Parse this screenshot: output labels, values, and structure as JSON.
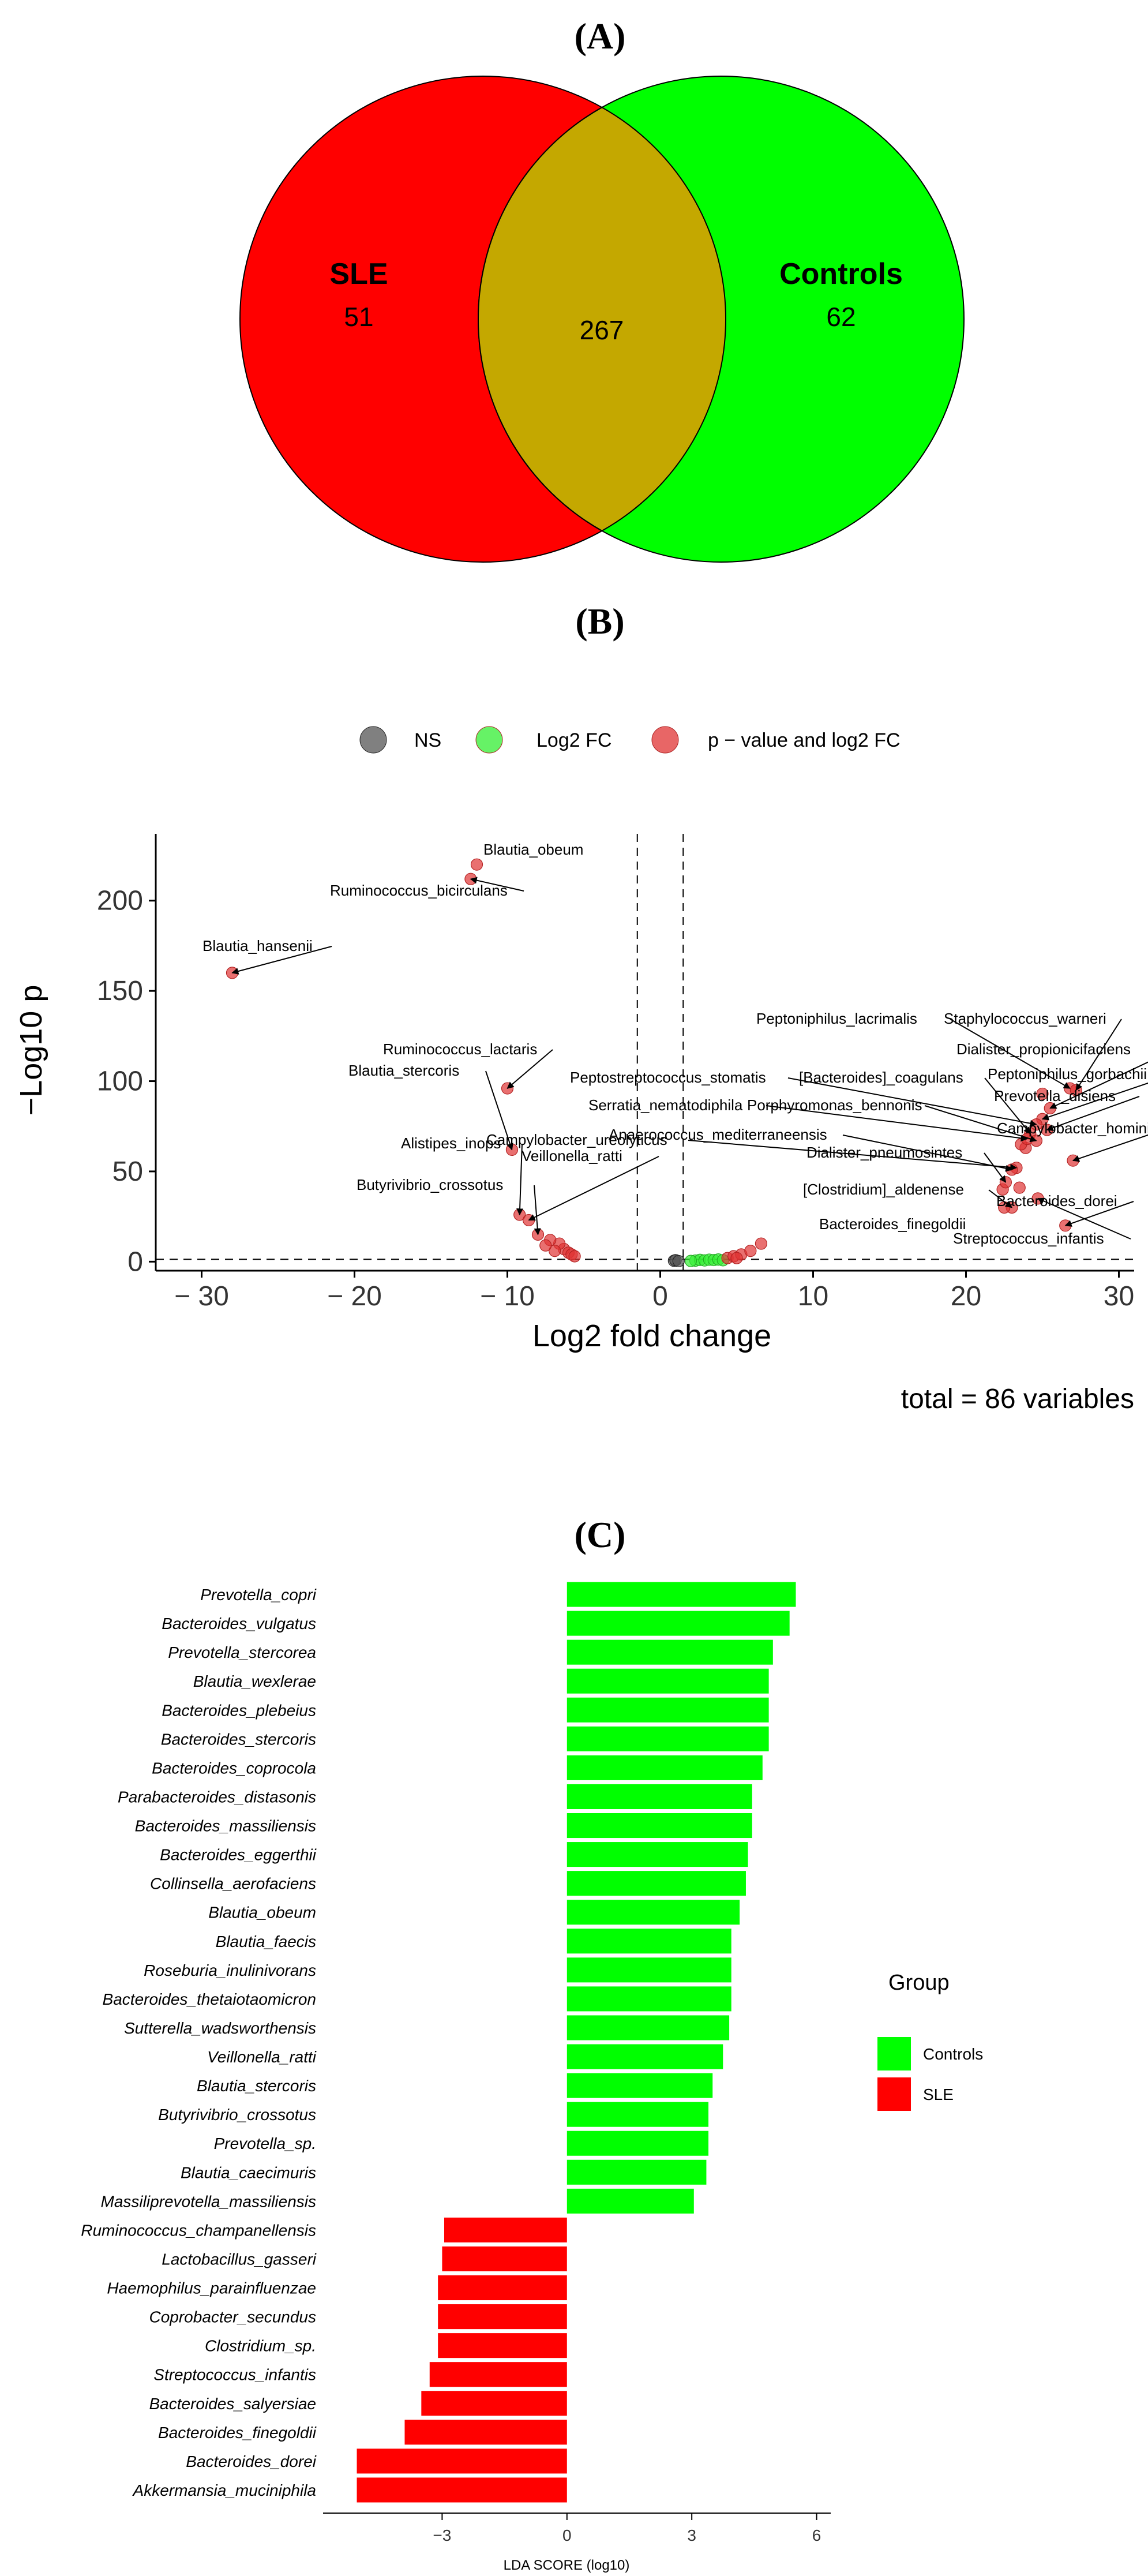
{
  "panels": {
    "a": "(A)",
    "b": "(B)",
    "c": "(C)"
  },
  "chart_data": [
    {
      "type": "venn",
      "sets": [
        {
          "name": "SLE",
          "unique": "51",
          "color": "#ff0000"
        },
        {
          "name": "Controls",
          "unique": "62",
          "color": "#00ff00"
        }
      ],
      "overlap": "267",
      "overlap_color": "#c4a800"
    },
    {
      "type": "scatter",
      "xlabel": "Log2 fold change",
      "ylabel": "−Log10 p",
      "xlim": [
        -33,
        31
      ],
      "ylim": [
        -5,
        237
      ],
      "x_ticks": [
        -30,
        -20,
        -10,
        0,
        10,
        20,
        30
      ],
      "y_ticks": [
        0,
        50,
        100,
        150,
        200
      ],
      "x_tick_labels": [
        "− 30",
        "− 20",
        "− 10",
        "0",
        "10",
        "20",
        "30"
      ],
      "y_tick_labels": [
        "0",
        "50",
        "100",
        "150",
        "200"
      ],
      "thresholds": {
        "fc": [
          -1.5,
          1.5
        ],
        "p": 1.3
      },
      "legend": [
        {
          "key": "NS",
          "label": "NS",
          "color": "#555555"
        },
        {
          "key": "fc",
          "label": "Log2 FC",
          "color": "#33ee33"
        },
        {
          "key": "pfc",
          "label": "p − value and log2 FC",
          "color": "#e03333"
        }
      ],
      "caption": "total = 86 variables",
      "labeled_points": [
        {
          "label": "Blautia_obeum",
          "x": -12.0,
          "y": 220
        },
        {
          "label": "Ruminococcus_bicirculans",
          "x": -12.4,
          "y": 212
        },
        {
          "label": "Blautia_hansenii",
          "x": -28.0,
          "y": 160
        },
        {
          "label": "Ruminococcus_lactaris",
          "x": -10.0,
          "y": 96
        },
        {
          "label": "Blautia_stercoris",
          "x": -9.7,
          "y": 62
        },
        {
          "label": "Alistipes_inops",
          "x": -9.2,
          "y": 26
        },
        {
          "label": "Veillonella_ratti",
          "x": -8.6,
          "y": 23
        },
        {
          "label": "Butyrivibrio_crossotus",
          "x": -8.0,
          "y": 15
        },
        {
          "label": "Peptoniphilus_lacrimalis",
          "x": 26.8,
          "y": 96
        },
        {
          "label": "Staphylococcus_warneri",
          "x": 27.2,
          "y": 95
        },
        {
          "label": "Dialister_propionicifaciens",
          "x": 25.5,
          "y": 85
        },
        {
          "label": "Peptoniphilus_gorbachii",
          "x": 25.0,
          "y": 79
        },
        {
          "label": "Prevotella_disiens",
          "x": 25.3,
          "y": 73
        },
        {
          "label": "Peptostreptococcus_stomatis",
          "x": 24.6,
          "y": 76
        },
        {
          "label": "[Bacteroides]_coagulans",
          "x": 24.2,
          "y": 71
        },
        {
          "label": "Serratia_nematodiphila",
          "x": 24.0,
          "y": 68
        },
        {
          "label": "Porphyromonas_bennonis",
          "x": 24.6,
          "y": 67
        },
        {
          "label": "Campylobacter_hominis",
          "x": 27.0,
          "y": 56
        },
        {
          "label": "Campylobacter_ureolyticus",
          "x": 23.3,
          "y": 52
        },
        {
          "label": "Anaerococcus_mediterraneensis",
          "x": 23.0,
          "y": 51
        },
        {
          "label": "Dialister_pneumosintes",
          "x": 22.6,
          "y": 44
        },
        {
          "label": "[Clostridium]_aldenense",
          "x": 23.0,
          "y": 30
        },
        {
          "label": "Bacteroides_dorei",
          "x": 26.5,
          "y": 20
        },
        {
          "label": "Bacteroides_finegoldii",
          "x": 22.5,
          "y": 30
        },
        {
          "label": "Streptococcus_infantis",
          "x": 24.7,
          "y": 35
        }
      ],
      "unlabeled_points": [
        {
          "x": -6.3,
          "y": 7,
          "g": "pfc"
        },
        {
          "x": -6.0,
          "y": 5,
          "g": "pfc"
        },
        {
          "x": -5.8,
          "y": 4,
          "g": "pfc"
        },
        {
          "x": -6.6,
          "y": 10,
          "g": "pfc"
        },
        {
          "x": -7.2,
          "y": 12,
          "g": "pfc"
        },
        {
          "x": -6.9,
          "y": 6,
          "g": "pfc"
        },
        {
          "x": -5.6,
          "y": 3,
          "g": "pfc"
        },
        {
          "x": -7.5,
          "y": 9,
          "g": "pfc"
        },
        {
          "x": 0.9,
          "y": 0.5,
          "g": "NS"
        },
        {
          "x": 1.0,
          "y": 0.8,
          "g": "NS"
        },
        {
          "x": 1.2,
          "y": 0.3,
          "g": "NS"
        },
        {
          "x": 2.3,
          "y": 0.6,
          "g": "fc"
        },
        {
          "x": 2.6,
          "y": 1.0,
          "g": "fc"
        },
        {
          "x": 2.9,
          "y": 0.7,
          "g": "fc"
        },
        {
          "x": 3.2,
          "y": 1.1,
          "g": "fc"
        },
        {
          "x": 3.5,
          "y": 0.9,
          "g": "fc"
        },
        {
          "x": 3.8,
          "y": 1.2,
          "g": "fc"
        },
        {
          "x": 4.1,
          "y": 0.8,
          "g": "fc"
        },
        {
          "x": 2.0,
          "y": 0.4,
          "g": "fc"
        },
        {
          "x": 4.4,
          "y": 2,
          "g": "pfc"
        },
        {
          "x": 4.8,
          "y": 3,
          "g": "pfc"
        },
        {
          "x": 5.3,
          "y": 4,
          "g": "pfc"
        },
        {
          "x": 5.9,
          "y": 6,
          "g": "pfc"
        },
        {
          "x": 6.6,
          "y": 10,
          "g": "pfc"
        },
        {
          "x": 5.0,
          "y": 2,
          "g": "pfc"
        },
        {
          "x": 22.4,
          "y": 40,
          "g": "pfc"
        },
        {
          "x": 23.5,
          "y": 41,
          "g": "pfc"
        },
        {
          "x": 23.9,
          "y": 63,
          "g": "pfc"
        },
        {
          "x": 25.0,
          "y": 93,
          "g": "pfc"
        },
        {
          "x": 23.6,
          "y": 65,
          "g": "pfc"
        }
      ]
    },
    {
      "type": "bar",
      "orientation": "horizontal",
      "xlabel": "LDA SCORE (log10)",
      "xlim": [
        -6.0,
        6.2
      ],
      "x_ticks": [
        -3,
        0,
        3,
        6
      ],
      "x_tick_labels": [
        "−3",
        "0",
        "3",
        "6"
      ],
      "legend_title": "Group",
      "series": [
        {
          "name": "Controls",
          "color": "#00ff00"
        },
        {
          "name": "SLE",
          "color": "#ff0000"
        }
      ],
      "bars": [
        {
          "label": "Prevotella_copri",
          "value": 5.5,
          "group": "Controls"
        },
        {
          "label": "Bacteroides_vulgatus",
          "value": 5.35,
          "group": "Controls"
        },
        {
          "label": "Prevotella_stercorea",
          "value": 4.95,
          "group": "Controls"
        },
        {
          "label": "Blautia_wexlerae",
          "value": 4.85,
          "group": "Controls"
        },
        {
          "label": "Bacteroides_plebeius",
          "value": 4.85,
          "group": "Controls"
        },
        {
          "label": "Bacteroides_stercoris",
          "value": 4.85,
          "group": "Controls"
        },
        {
          "label": "Bacteroides_coprocola",
          "value": 4.7,
          "group": "Controls"
        },
        {
          "label": "Parabacteroides_distasonis",
          "value": 4.45,
          "group": "Controls"
        },
        {
          "label": "Bacteroides_massiliensis",
          "value": 4.45,
          "group": "Controls"
        },
        {
          "label": "Bacteroides_eggerthii",
          "value": 4.35,
          "group": "Controls"
        },
        {
          "label": "Collinsella_aerofaciens",
          "value": 4.3,
          "group": "Controls"
        },
        {
          "label": "Blautia_obeum",
          "value": 4.15,
          "group": "Controls"
        },
        {
          "label": "Blautia_faecis",
          "value": 3.95,
          "group": "Controls"
        },
        {
          "label": "Roseburia_inulinivorans",
          "value": 3.95,
          "group": "Controls"
        },
        {
          "label": "Bacteroides_thetaiotaomicron",
          "value": 3.95,
          "group": "Controls"
        },
        {
          "label": "Sutterella_wadsworthensis",
          "value": 3.9,
          "group": "Controls"
        },
        {
          "label": "Veillonella_ratti",
          "value": 3.75,
          "group": "Controls"
        },
        {
          "label": "Blautia_stercoris",
          "value": 3.5,
          "group": "Controls"
        },
        {
          "label": "Butyrivibrio_crossotus",
          "value": 3.4,
          "group": "Controls"
        },
        {
          "label": "Prevotella_sp.",
          "value": 3.4,
          "group": "Controls"
        },
        {
          "label": "Blautia_caecimuris",
          "value": 3.35,
          "group": "Controls"
        },
        {
          "label": "Massiliprevotella_massiliensis",
          "value": 3.05,
          "group": "Controls"
        },
        {
          "label": "Ruminococcus_champanellensis",
          "value": -2.95,
          "group": "SLE"
        },
        {
          "label": "Lactobacillus_gasseri",
          "value": -3.0,
          "group": "SLE"
        },
        {
          "label": "Haemophilus_parainfluenzae",
          "value": -3.1,
          "group": "SLE"
        },
        {
          "label": "Coprobacter_secundus",
          "value": -3.1,
          "group": "SLE"
        },
        {
          "label": "Clostridium_sp.",
          "value": -3.1,
          "group": "SLE"
        },
        {
          "label": "Streptococcus_infantis",
          "value": -3.3,
          "group": "SLE"
        },
        {
          "label": "Bacteroides_salyersiae",
          "value": -3.5,
          "group": "SLE"
        },
        {
          "label": "Bacteroides_finegoldii",
          "value": -3.9,
          "group": "SLE"
        },
        {
          "label": "Bacteroides_dorei",
          "value": -5.05,
          "group": "SLE"
        },
        {
          "label": "Akkermansia_muciniphila",
          "value": -5.05,
          "group": "SLE"
        }
      ]
    }
  ]
}
